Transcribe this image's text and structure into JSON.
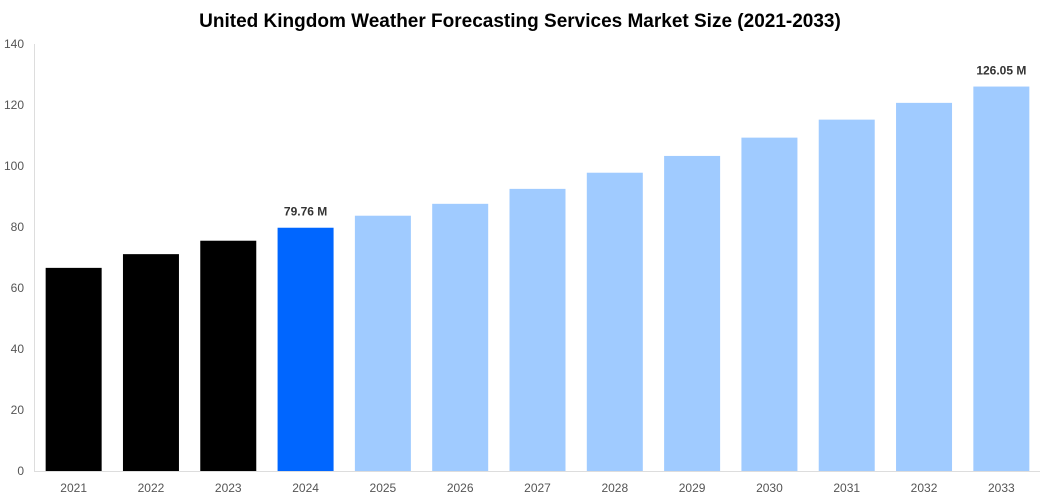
{
  "chart_data": {
    "type": "bar",
    "title": "United Kingdom Weather Forecasting Services Market Size (2021-2033)",
    "xlabel": "",
    "ylabel": "",
    "ylim": [
      0,
      140
    ],
    "yticks": [
      "0",
      "20",
      "40",
      "60",
      "80",
      "100",
      "120",
      "140"
    ],
    "grid": false,
    "categories": [
      "2021",
      "2022",
      "2023",
      "2024",
      "2025",
      "2026",
      "2027",
      "2028",
      "2029",
      "2030",
      "2031",
      "2032",
      "2033"
    ],
    "values": [
      66.6,
      71.1,
      75.5,
      79.76,
      83.7,
      87.6,
      92.5,
      97.8,
      103.3,
      109.3,
      115.2,
      120.7,
      126.05
    ],
    "colors": [
      "#000000",
      "#000000",
      "#000000",
      "#0066ff",
      "#a0cbff",
      "#a0cbff",
      "#a0cbff",
      "#a0cbff",
      "#a0cbff",
      "#a0cbff",
      "#a0cbff",
      "#a0cbff",
      "#a0cbff"
    ],
    "data_labels": [
      {
        "category": "2024",
        "text": "79.76 M"
      },
      {
        "category": "2033",
        "text": "126.05 M"
      }
    ]
  }
}
